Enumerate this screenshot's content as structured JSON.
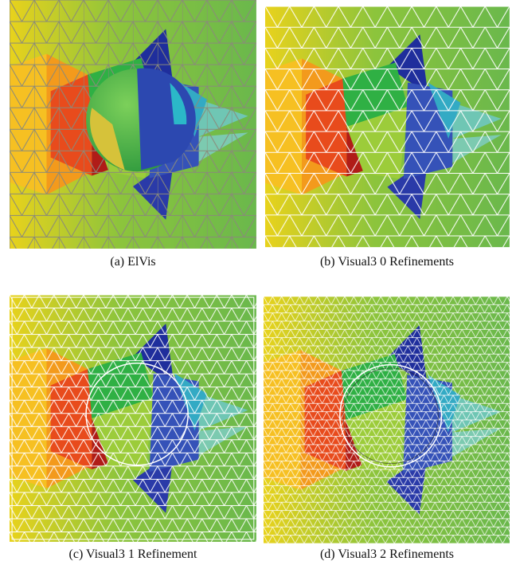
{
  "figure": {
    "panels": [
      {
        "caption": "(a)  ElVis"
      },
      {
        "caption": "(b)  Visual3 0 Refinements"
      },
      {
        "caption": "(c)  Visual3 1 Refinement"
      },
      {
        "caption": "(d)  Visual3 2 Refinements"
      }
    ]
  }
}
